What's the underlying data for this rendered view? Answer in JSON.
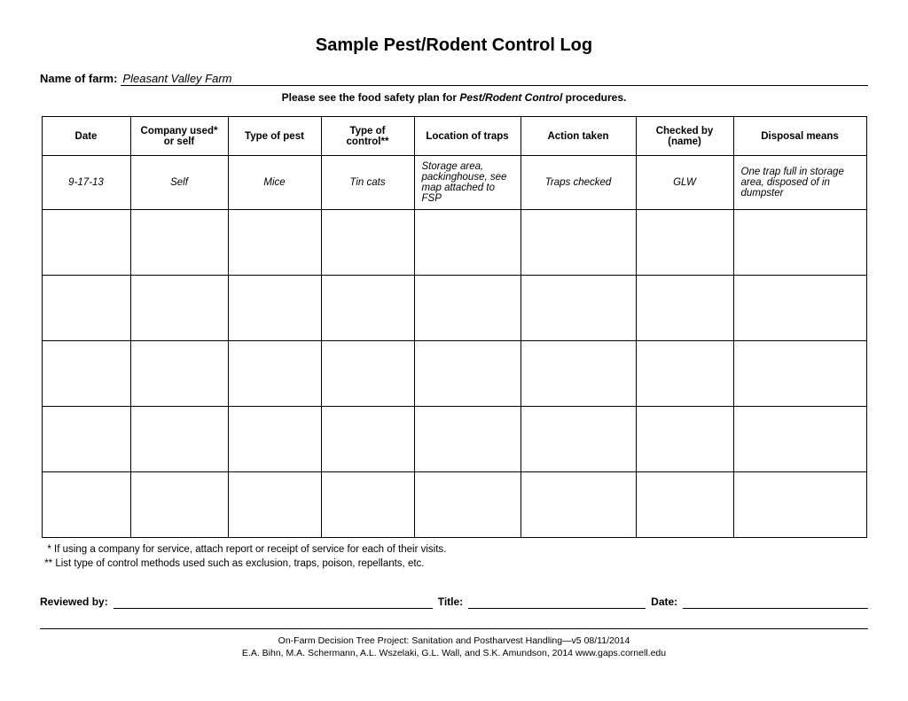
{
  "title": "Sample Pest/Rodent Control Log",
  "farm": {
    "label": "Name of farm:",
    "value": "Pleasant Valley Farm"
  },
  "instruction": {
    "prefix": "Please see the food safety plan for ",
    "emphasis": "Pest/Rodent Control",
    "suffix": " procedures."
  },
  "columns": {
    "date": "Date",
    "company": "Company used* or self",
    "pest": "Type of pest",
    "control": "Type of control**",
    "location": "Location of traps",
    "action": "Action taken",
    "checked": "Checked by (name)",
    "disposal": "Disposal means"
  },
  "row1": {
    "date": "9-17-13",
    "company": "Self",
    "pest": "Mice",
    "control": "Tin cats",
    "location": "Storage area, packinghouse, see map attached to FSP",
    "action": "Traps checked",
    "checked": "GLW",
    "disposal": "One trap full in storage area, disposed of in dumpster"
  },
  "footnotes": {
    "n1": "  * If using a company for service, attach report or receipt of service for each of their visits.",
    "n2": " ** List type of control methods used such as exclusion, traps, poison, repellants, etc."
  },
  "review": {
    "reviewed_by": "Reviewed by:",
    "title": "Title:",
    "date": "Date:"
  },
  "footer": {
    "line1": "On-Farm Decision Tree Project: Sanitation and Postharvest Handling—v5    08/11/2014",
    "line2": "E.A. Bihn, M.A. Schermann, A.L. Wszelaki, G.L. Wall, and S.K. Amundson, 2014    www.gaps.cornell.edu"
  }
}
